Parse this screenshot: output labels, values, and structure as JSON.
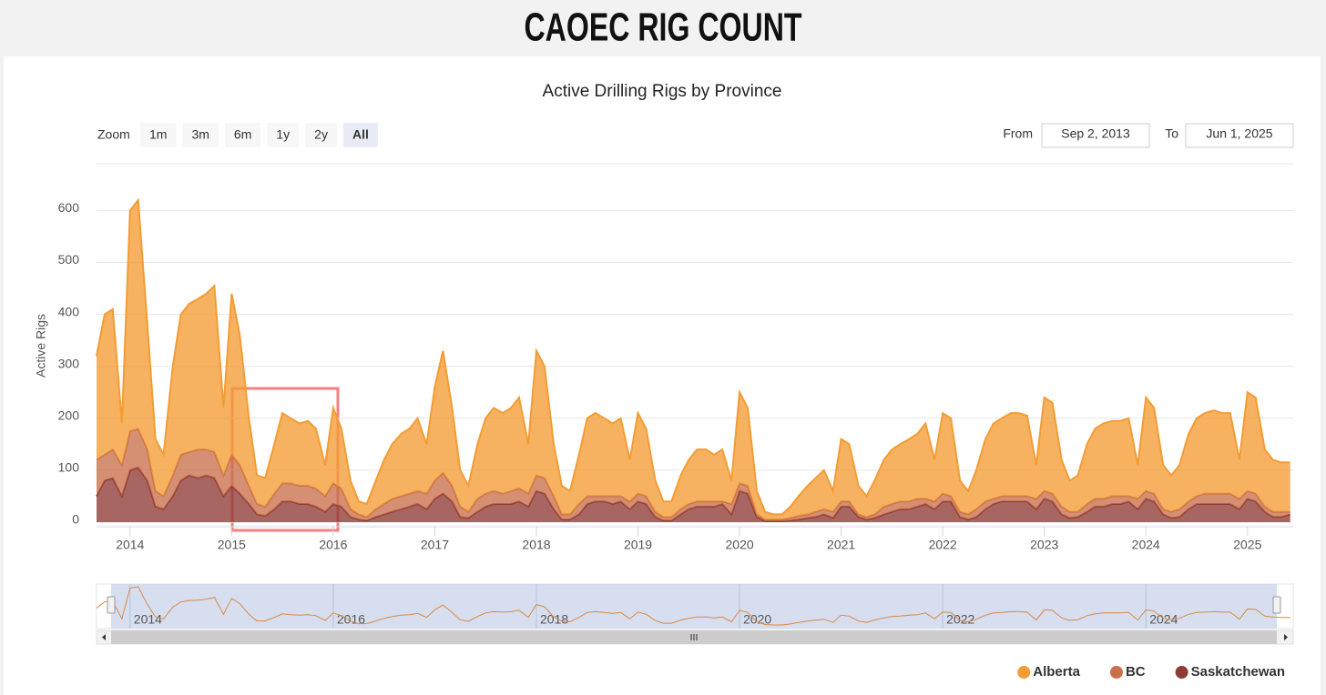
{
  "page_title": "CAOEC RIG COUNT",
  "chart_data": {
    "type": "area",
    "stacked": true,
    "title": "Active Drilling Rigs by Province",
    "y_label": "Active Rigs",
    "x": [
      2013.67,
      2013.75,
      2013.83,
      2013.92,
      2014,
      2014.08,
      2014.17,
      2014.25,
      2014.33,
      2014.42,
      2014.5,
      2014.58,
      2014.67,
      2014.75,
      2014.83,
      2014.92,
      2015,
      2015.08,
      2015.17,
      2015.25,
      2015.33,
      2015.42,
      2015.5,
      2015.58,
      2015.67,
      2015.75,
      2015.83,
      2015.92,
      2016,
      2016.08,
      2016.17,
      2016.25,
      2016.33,
      2016.42,
      2016.5,
      2016.58,
      2016.67,
      2016.75,
      2016.83,
      2016.92,
      2017,
      2017.08,
      2017.17,
      2017.25,
      2017.33,
      2017.42,
      2017.5,
      2017.58,
      2017.67,
      2017.75,
      2017.83,
      2017.92,
      2018,
      2018.08,
      2018.17,
      2018.25,
      2018.33,
      2018.42,
      2018.5,
      2018.58,
      2018.67,
      2018.75,
      2018.83,
      2018.92,
      2019,
      2019.08,
      2019.17,
      2019.25,
      2019.33,
      2019.42,
      2019.5,
      2019.58,
      2019.67,
      2019.75,
      2019.83,
      2019.92,
      2020,
      2020.08,
      2020.17,
      2020.25,
      2020.33,
      2020.42,
      2020.5,
      2020.58,
      2020.67,
      2020.75,
      2020.83,
      2020.92,
      2021,
      2021.08,
      2021.17,
      2021.25,
      2021.33,
      2021.42,
      2021.5,
      2021.58,
      2021.67,
      2021.75,
      2021.83,
      2021.92,
      2022,
      2022.08,
      2022.17,
      2022.25,
      2022.33,
      2022.42,
      2022.5,
      2022.58,
      2022.67,
      2022.75,
      2022.83,
      2022.92,
      2023,
      2023.08,
      2023.17,
      2023.25,
      2023.33,
      2023.42,
      2023.5,
      2023.58,
      2023.67,
      2023.75,
      2023.83,
      2023.92,
      2024,
      2024.08,
      2024.17,
      2024.25,
      2024.33,
      2024.42,
      2024.5,
      2024.58,
      2024.67,
      2024.75,
      2024.83,
      2024.92,
      2025,
      2025.08,
      2025.17,
      2025.25,
      2025.33,
      2025.42
    ],
    "series": [
      {
        "name": "Alberta",
        "color": "#f39c34",
        "values": [
          200,
          270,
          270,
          80,
          425,
          440,
          240,
          100,
          80,
          210,
          270,
          285,
          290,
          300,
          320,
          130,
          310,
          250,
          130,
          55,
          55,
          95,
          135,
          125,
          120,
          125,
          115,
          60,
          145,
          115,
          55,
          25,
          25,
          55,
          85,
          105,
          120,
          125,
          140,
          95,
          180,
          235,
          150,
          70,
          50,
          105,
          145,
          160,
          155,
          160,
          175,
          95,
          240,
          215,
          100,
          55,
          45,
          95,
          150,
          160,
          150,
          140,
          150,
          80,
          155,
          130,
          60,
          30,
          30,
          65,
          85,
          100,
          100,
          90,
          100,
          45,
          175,
          150,
          45,
          15,
          10,
          10,
          22,
          38,
          55,
          65,
          75,
          40,
          120,
          110,
          55,
          40,
          65,
          90,
          105,
          110,
          120,
          125,
          145,
          80,
          155,
          150,
          60,
          45,
          75,
          120,
          145,
          150,
          160,
          160,
          155,
          65,
          180,
          175,
          90,
          60,
          70,
          115,
          135,
          145,
          145,
          145,
          150,
          65,
          180,
          165,
          85,
          70,
          85,
          130,
          150,
          155,
          160,
          155,
          155,
          75,
          190,
          185,
          110,
          100,
          95,
          95
        ]
      },
      {
        "name": "BC",
        "color": "#c9704a",
        "values": [
          70,
          50,
          55,
          60,
          75,
          75,
          60,
          30,
          25,
          40,
          50,
          45,
          55,
          50,
          50,
          40,
          60,
          55,
          35,
          20,
          18,
          30,
          35,
          35,
          35,
          35,
          35,
          30,
          40,
          35,
          15,
          10,
          7,
          15,
          20,
          25,
          25,
          25,
          25,
          30,
          35,
          40,
          30,
          20,
          12,
          25,
          25,
          25,
          20,
          25,
          25,
          25,
          30,
          30,
          25,
          10,
          10,
          20,
          15,
          10,
          10,
          15,
          10,
          15,
          15,
          15,
          10,
          7,
          7,
          10,
          10,
          10,
          10,
          10,
          5,
          20,
          15,
          15,
          5,
          3,
          3,
          3,
          5,
          7,
          7,
          10,
          10,
          12,
          10,
          10,
          5,
          5,
          7,
          15,
          15,
          15,
          15,
          15,
          10,
          15,
          15,
          10,
          10,
          10,
          15,
          15,
          10,
          10,
          10,
          10,
          10,
          20,
          15,
          15,
          15,
          12,
          10,
          15,
          15,
          15,
          15,
          15,
          10,
          20,
          15,
          15,
          10,
          12,
          15,
          15,
          15,
          20,
          20,
          20,
          20,
          20,
          15,
          15,
          10,
          10,
          10,
          5
        ]
      },
      {
        "name": "Saskatchewan",
        "color": "#8e3b36",
        "values": [
          50,
          80,
          85,
          50,
          100,
          105,
          80,
          30,
          25,
          50,
          80,
          90,
          85,
          90,
          85,
          50,
          70,
          55,
          35,
          15,
          12,
          25,
          40,
          40,
          35,
          35,
          30,
          20,
          35,
          30,
          10,
          5,
          3,
          10,
          15,
          20,
          25,
          30,
          35,
          25,
          45,
          55,
          40,
          10,
          8,
          20,
          30,
          35,
          35,
          35,
          40,
          30,
          60,
          55,
          25,
          5,
          5,
          15,
          35,
          40,
          40,
          35,
          40,
          25,
          40,
          35,
          10,
          3,
          3,
          15,
          25,
          30,
          30,
          30,
          35,
          15,
          60,
          55,
          10,
          2,
          2,
          2,
          3,
          5,
          8,
          10,
          15,
          8,
          30,
          30,
          10,
          5,
          8,
          15,
          20,
          25,
          25,
          30,
          35,
          25,
          40,
          40,
          10,
          5,
          10,
          25,
          35,
          40,
          40,
          40,
          40,
          25,
          45,
          40,
          15,
          8,
          10,
          20,
          30,
          30,
          35,
          35,
          40,
          25,
          45,
          40,
          15,
          8,
          10,
          25,
          35,
          35,
          35,
          35,
          35,
          25,
          45,
          40,
          20,
          10,
          10,
          15
        ]
      }
    ],
    "xlim": [
      2013.67,
      2025.45
    ],
    "ylim": [
      0,
      690
    ],
    "xticks": [
      2014,
      2015,
      2016,
      2017,
      2018,
      2019,
      2020,
      2021,
      2022,
      2023,
      2024,
      2025
    ],
    "yticks": [
      0,
      100,
      200,
      300,
      400,
      500,
      600
    ],
    "grid": true,
    "legend": "bottom-right",
    "zoom": {
      "label": "Zoom",
      "buttons": [
        "1m",
        "3m",
        "6m",
        "1y",
        "2y",
        "All"
      ],
      "selected": 5
    },
    "range": {
      "from_label": "From",
      "from": "Sep 2, 2013",
      "to_label": "To",
      "to": "Jun 1, 2025"
    },
    "navigator": {
      "xticks": [
        2014,
        2016,
        2018,
        2020,
        2022,
        2024
      ]
    }
  }
}
